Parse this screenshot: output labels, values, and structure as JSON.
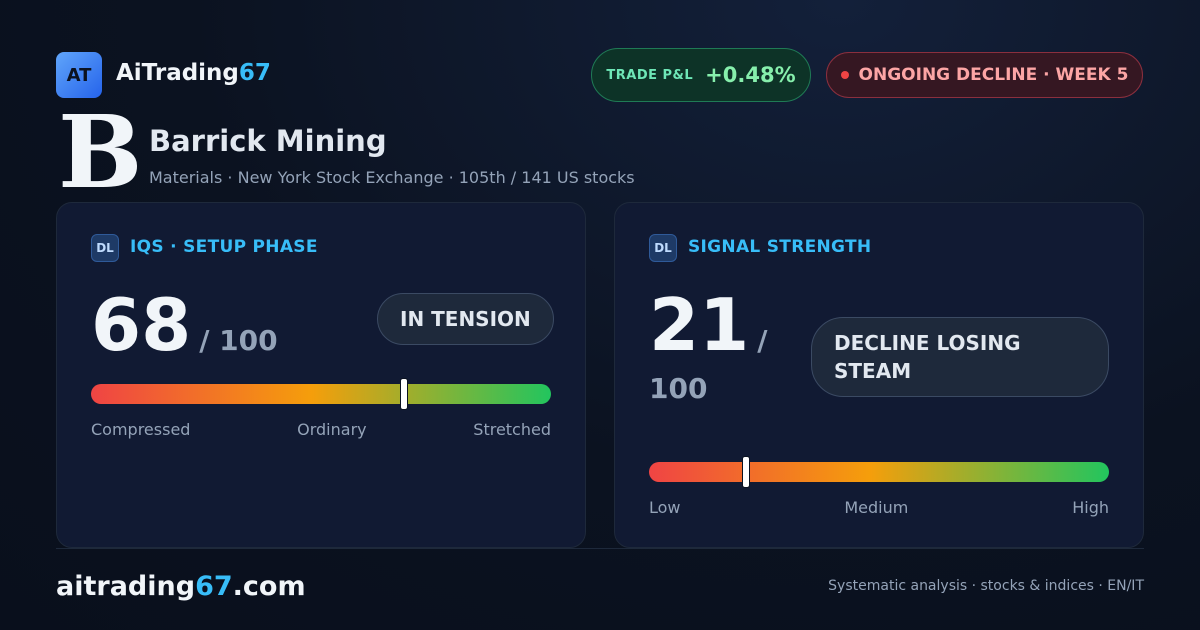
{
  "header": {
    "logo_badge": "AT",
    "brand": "AiTrading",
    "brand_accent": "67",
    "pnl_label": "TRADE P&L",
    "pnl_value": "+0.48%",
    "status": "ONGOING DECLINE · WEEK 5"
  },
  "stock": {
    "grade": "B",
    "name": "Barrick Mining",
    "meta": "Materials · New York Stock Exchange · 105th / 141 US stocks"
  },
  "cards": [
    {
      "badge": "DL",
      "title": "IQS · SETUP PHASE",
      "value": 68,
      "max": {
        "value": 100,
        "label": "/ 100"
      },
      "tag": "IN TENSION",
      "scale": [
        "Compressed",
        "Ordinary",
        "Stretched"
      ]
    },
    {
      "badge": "DL",
      "title": "SIGNAL STRENGTH",
      "value": 21,
      "max": {
        "value": 100,
        "label": "/ 100"
      },
      "tag": "DECLINE LOSING STEAM",
      "scale": [
        "Low",
        "Medium",
        "High"
      ]
    }
  ],
  "footer": {
    "site": "aitrading",
    "site_accent": "67",
    "site_tld": ".com",
    "tagline": "Systematic analysis · stocks & indices · EN/IT"
  }
}
